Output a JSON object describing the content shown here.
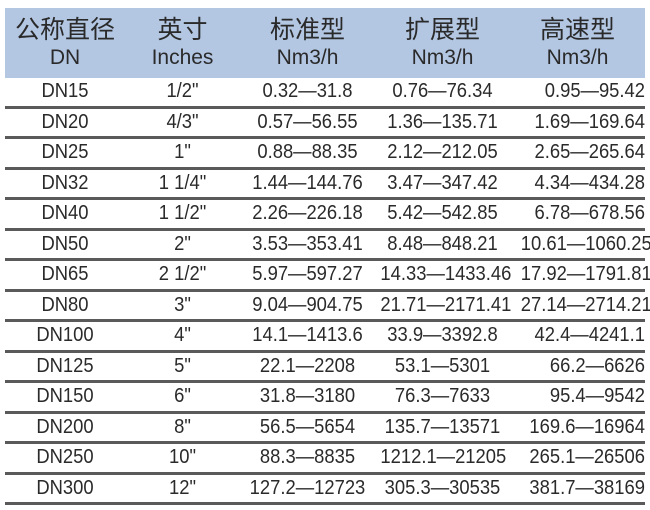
{
  "header": [
    {
      "zh": "公称直径",
      "en": "DN"
    },
    {
      "zh": "英寸",
      "en": "Inches"
    },
    {
      "zh": "标准型",
      "en": "Nm3/h"
    },
    {
      "zh": "扩展型",
      "en": "Nm3/h"
    },
    {
      "zh": "高速型",
      "en": "Nm3/h"
    }
  ],
  "rows": [
    [
      "DN15",
      "1/2\"",
      "0.32—31.8",
      "0.76—76.34",
      "0.95—95.42"
    ],
    [
      "DN20",
      "4/3\"",
      "0.57—56.55",
      "1.36—135.71",
      "1.69—169.64"
    ],
    [
      "DN25",
      "1\"",
      "0.88—88.35",
      "2.12—212.05",
      "2.65—265.64"
    ],
    [
      "DN32",
      "1 1/4\"",
      "1.44—144.76",
      "3.47—347.42",
      "4.34—434.28"
    ],
    [
      "DN40",
      "1 1/2\"",
      "2.26—226.18",
      "5.42—542.85",
      "6.78—678.56"
    ],
    [
      "DN50",
      "2\"",
      "3.53—353.41",
      "8.48—848.21",
      "10.61—1060.25"
    ],
    [
      "DN65",
      "2 1/2\"",
      "5.97—597.27",
      "14.33—1433.46",
      "17.92—1791.81"
    ],
    [
      "DN80",
      "3\"",
      "9.04—904.75",
      "21.71—2171.41",
      "27.14—2714.21"
    ],
    [
      "DN100",
      "4\"",
      "14.1—1413.6",
      "33.9—3392.8",
      "42.4—4241.1"
    ],
    [
      "DN125",
      "5\"",
      "22.1—2208",
      "53.1—5301",
      "66.2—6626"
    ],
    [
      "DN150",
      "6\"",
      "31.8—3180",
      "76.3—7633",
      "95.4—9542"
    ],
    [
      "DN200",
      "8\"",
      "56.5—5654",
      "135.7—13571",
      "169.6—16964"
    ],
    [
      "DN250",
      "10\"",
      "88.3—8835",
      "1212.1—21205",
      "265.1—26506"
    ],
    [
      "DN300",
      "12\"",
      "127.2—12723",
      "305.3—30535",
      "381.7—38169"
    ]
  ],
  "colors": {
    "header_bg": "#b3c7e3",
    "row_divider": "#5a5a5a",
    "text": "#2a2a2a"
  }
}
